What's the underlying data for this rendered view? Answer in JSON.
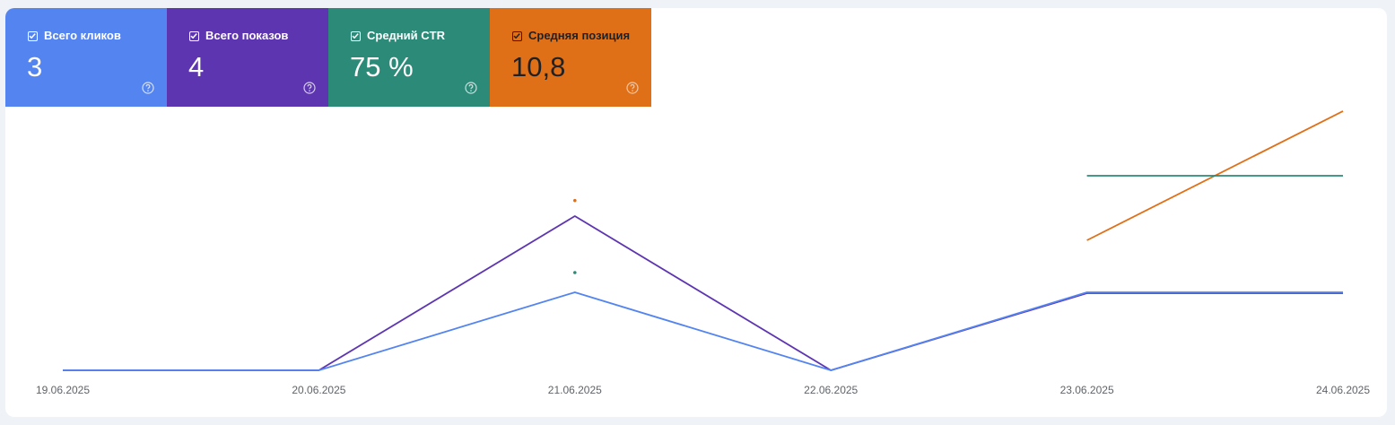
{
  "metrics": [
    {
      "label": "Всего кликов",
      "value": "3",
      "color": "#5384f0",
      "text_color": "#ffffff",
      "checked": true,
      "help_icon": "help-circle-icon"
    },
    {
      "label": "Всего показов",
      "value": "4",
      "color": "#5e35b1",
      "text_color": "#ffffff",
      "checked": true,
      "help_icon": "help-circle-icon"
    },
    {
      "label": "Средний CTR",
      "value": "75 %",
      "color": "#2b8a78",
      "text_color": "#ffffff",
      "checked": true,
      "help_icon": "help-circle-icon"
    },
    {
      "label": "Средняя позиция",
      "value": "10,8",
      "color": "#e07018",
      "text_color": "#202124",
      "checked": true,
      "help_icon": "help-circle-icon"
    }
  ],
  "chart_data": {
    "type": "line",
    "x": [
      "19.06.2025",
      "20.06.2025",
      "21.06.2025",
      "22.06.2025",
      "23.06.2025",
      "24.06.2025"
    ],
    "grid": false,
    "legend": "none",
    "series": [
      {
        "name": "Всего кликов",
        "color": "#5384f0",
        "values": [
          0,
          0,
          1,
          0,
          1,
          1
        ]
      },
      {
        "name": "Всего показов",
        "color": "#5e35b1",
        "values": [
          0,
          0,
          2,
          0,
          1,
          1
        ]
      },
      {
        "name": "Средний CTR",
        "color": "#2b8a78",
        "values": [
          null,
          null,
          50,
          null,
          100,
          100
        ]
      },
      {
        "name": "Средняя позиция",
        "color": "#e07018",
        "values": [
          null,
          null,
          9,
          null,
          5,
          18
        ]
      }
    ]
  }
}
